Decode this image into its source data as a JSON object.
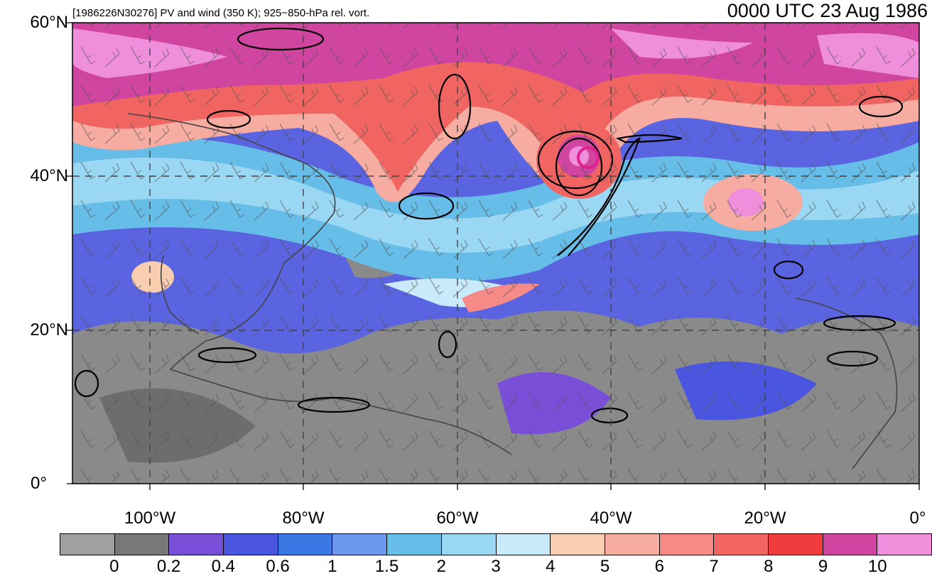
{
  "header": {
    "subtitle": "[1986226N30276] PV and wind (350 K); 925−850-hPa rel. vort.",
    "valid_time": "0000 UTC 23 Aug 1986"
  },
  "map": {
    "lat_labels": [
      "60°N",
      "40°N",
      "20°N",
      "0°"
    ],
    "lon_labels": [
      "100°W",
      "80°W",
      "60°W",
      "40°W",
      "20°W",
      "0°"
    ]
  },
  "colorbar": {
    "colors": [
      "#a0a0a0",
      "#787878",
      "#7a4fd8",
      "#4a55e0",
      "#3c78e4",
      "#6b98ec",
      "#66bde8",
      "#99d7f3",
      "#c9eafa",
      "#f9cdb0",
      "#f7aca1",
      "#f58a86",
      "#f06462",
      "#f03c3c",
      "#d045a0",
      "#ef8fdb"
    ],
    "tick_labels": [
      "0",
      "0.2",
      "0.4",
      "0.6",
      "1",
      "1.5",
      "2",
      "3",
      "4",
      "5",
      "6",
      "7",
      "8",
      "9",
      "10"
    ]
  }
}
